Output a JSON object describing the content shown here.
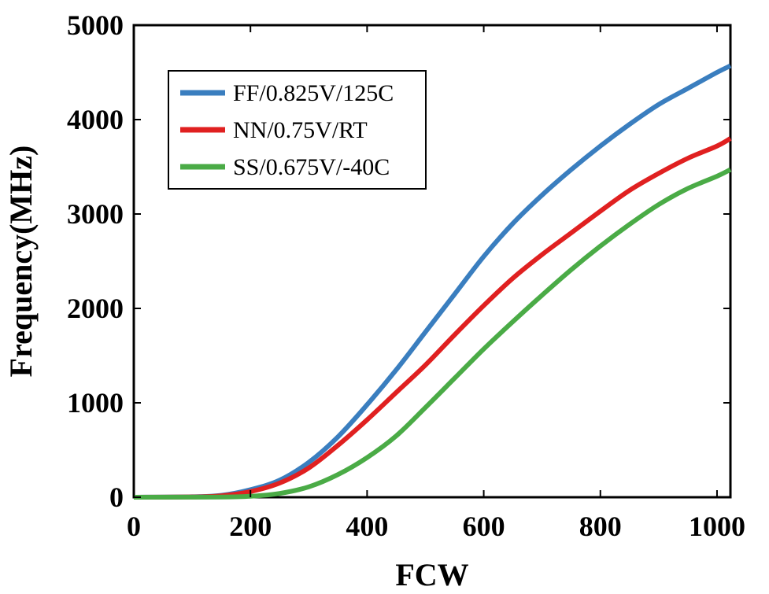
{
  "chart_data": {
    "type": "line",
    "title": "",
    "xlabel": "FCW",
    "ylabel": "Frequency(MHz)",
    "xlim": [
      0,
      1023
    ],
    "ylim": [
      0,
      5000
    ],
    "xticks": [
      0,
      200,
      400,
      600,
      800,
      1000
    ],
    "yticks": [
      0,
      1000,
      2000,
      3000,
      4000,
      5000
    ],
    "xtick_labels": [
      "0",
      "200",
      "400",
      "600",
      "800",
      "1000"
    ],
    "ytick_labels": [
      "0",
      "1000",
      "2000",
      "3000",
      "4000",
      "5000"
    ],
    "grid": false,
    "legend_position": "top-left",
    "series": [
      {
        "name": "FF/0.825V/125C",
        "color": "#3a7ebf",
        "x": [
          0,
          100,
          150,
          200,
          250,
          300,
          350,
          400,
          450,
          500,
          550,
          600,
          650,
          700,
          750,
          800,
          850,
          900,
          950,
          1000,
          1023
        ],
        "y": [
          0,
          5,
          20,
          80,
          180,
          370,
          640,
          980,
          1350,
          1750,
          2150,
          2550,
          2900,
          3200,
          3470,
          3720,
          3950,
          4160,
          4330,
          4500,
          4570
        ]
      },
      {
        "name": "NN/0.75V/RT",
        "color": "#e02020",
        "x": [
          0,
          100,
          150,
          200,
          250,
          300,
          350,
          400,
          450,
          500,
          550,
          600,
          650,
          700,
          750,
          800,
          850,
          900,
          950,
          1000,
          1023
        ],
        "y": [
          0,
          3,
          15,
          60,
          150,
          310,
          550,
          820,
          1110,
          1400,
          1720,
          2030,
          2320,
          2570,
          2800,
          3030,
          3250,
          3430,
          3590,
          3720,
          3800
        ]
      },
      {
        "name": "SS/0.675V/-40C",
        "color": "#4aab46",
        "x": [
          0,
          150,
          200,
          250,
          300,
          350,
          400,
          450,
          500,
          550,
          600,
          650,
          700,
          750,
          800,
          850,
          900,
          950,
          1000,
          1023
        ],
        "y": [
          0,
          2,
          10,
          40,
          110,
          240,
          420,
          650,
          950,
          1260,
          1570,
          1860,
          2140,
          2410,
          2660,
          2890,
          3100,
          3270,
          3400,
          3470
        ]
      }
    ]
  }
}
